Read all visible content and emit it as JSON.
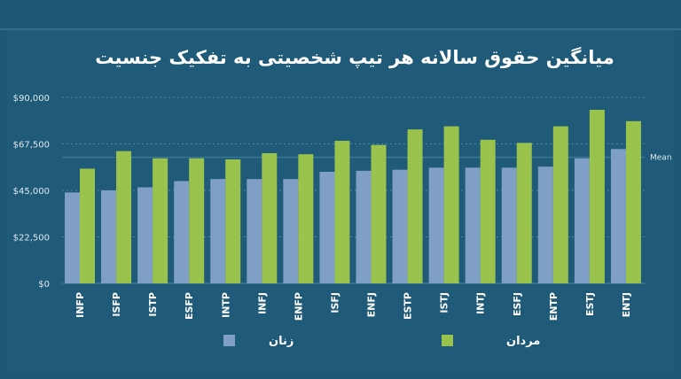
{
  "chart_data": {
    "type": "bar",
    "title": "میانگین حقوق سالانه هر تیپ شخصیتی به تفکیک جنسیت",
    "categories": [
      "INFP",
      "ISFP",
      "ISTP",
      "ESFP",
      "INTP",
      "INFJ",
      "ENFP",
      "ISFJ",
      "ENFJ",
      "ESTP",
      "ISTJ",
      "INTJ",
      "ESFJ",
      "ENTP",
      "ESTJ",
      "ENTJ"
    ],
    "series": [
      {
        "name": "زنان",
        "color": "#7f9fc6",
        "values": [
          44000,
          45000,
          46500,
          49500,
          50500,
          50500,
          50500,
          54000,
          54500,
          55000,
          56000,
          56000,
          56000,
          56500,
          60500,
          65000
        ]
      },
      {
        "name": "مردان",
        "color": "#9ac34d",
        "values": [
          55500,
          64000,
          60500,
          60500,
          60000,
          63000,
          62500,
          69000,
          67000,
          74500,
          76000,
          69500,
          68000,
          76000,
          84000,
          78500
        ]
      }
    ],
    "mean": {
      "label": "Mean",
      "value": 61000
    },
    "ylim": [
      0,
      90000
    ],
    "yticks": [
      0,
      22500,
      45000,
      67500,
      90000
    ],
    "ytick_labels": [
      "$0",
      "$22,500",
      "$45,000",
      "$67,500",
      "$90,000"
    ],
    "xlabel": "",
    "ylabel": "",
    "grid": true,
    "legend_position": "bottom"
  },
  "colors": {
    "background": "#1c5775",
    "grid": "#4a89a8",
    "women": "#7f9fc6",
    "men": "#9ac34d",
    "mean_line": "#3b7796"
  }
}
